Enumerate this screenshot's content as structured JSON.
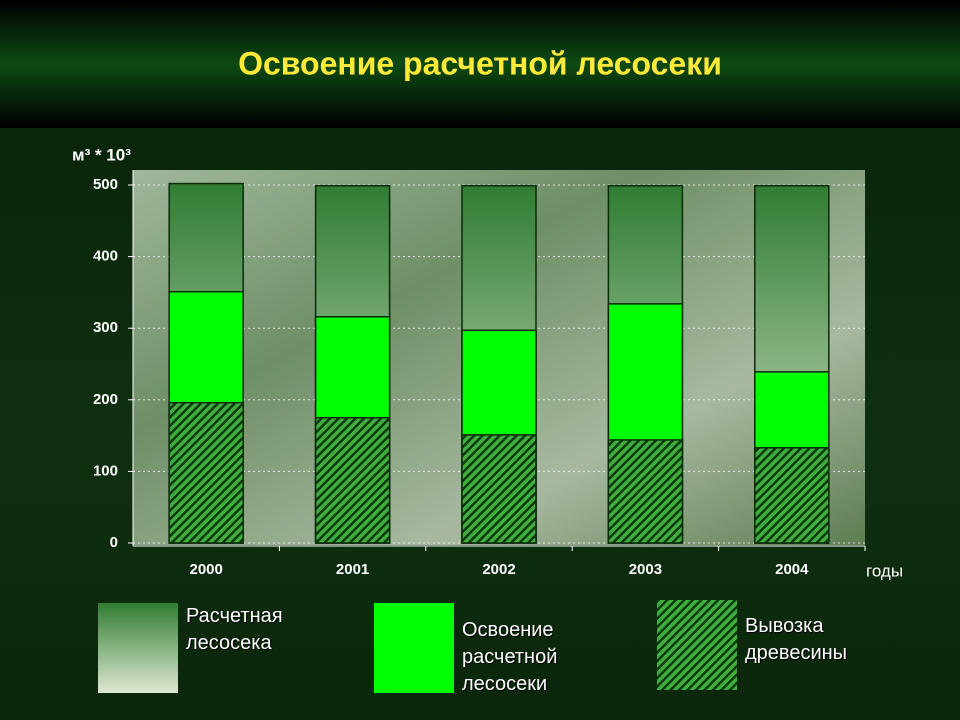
{
  "chart_data": {
    "type": "bar",
    "title": "Освоение  расчетной  лесосеки",
    "y_label": "м³ * 10³",
    "x_label": "годы",
    "categories": [
      "2000",
      "2001",
      "2002",
      "2003",
      "2004"
    ],
    "series": [
      {
        "name": "Расчетная лесосека",
        "color": "#2f7d32",
        "values": [
          502,
          499,
          499,
          499,
          499
        ]
      },
      {
        "name": "Освоение расчетной лесосеки",
        "color": "#00ff00",
        "values": [
          351,
          316,
          297,
          334,
          239
        ]
      },
      {
        "name": "Вывозка древесины",
        "color": "#3fae3f",
        "values": [
          196,
          175,
          151,
          144,
          133
        ]
      }
    ],
    "ylim": [
      0,
      500
    ],
    "yticks": [
      0,
      100,
      200,
      300,
      400,
      500
    ],
    "grid": true
  }
}
